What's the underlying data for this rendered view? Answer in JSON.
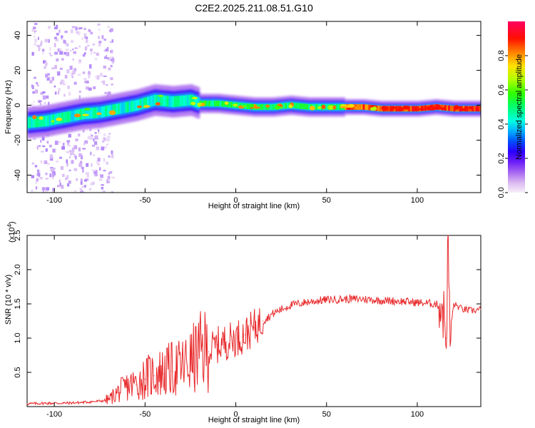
{
  "figure": {
    "title": "C2E2.2025.211.08.51.G10"
  },
  "chart_data": [
    {
      "type": "heatmap",
      "name": "spectrogram",
      "xlabel": "Height of straight line (km)",
      "ylabel": "Frequency (Hz)",
      "xlim": [
        -115,
        135
      ],
      "ylim": [
        -50,
        48
      ],
      "x_ticks": [
        -100,
        -50,
        0,
        50,
        100
      ],
      "x_tick_labels": [
        "-100",
        "-50",
        "0",
        "50",
        "100"
      ],
      "y_ticks": [
        40,
        20,
        0,
        -20,
        -40
      ],
      "y_tick_labels": [
        "40",
        "20",
        "0",
        "-20",
        "-40"
      ],
      "colorbar": {
        "label": "Normalized spectral amplitude",
        "range": [
          0.0,
          1.0
        ],
        "ticks": [
          0.0,
          0.2,
          0.4,
          0.6,
          0.8
        ],
        "tick_labels": [
          "0.0",
          "0.2",
          "0.4",
          "0.6",
          "0.8"
        ],
        "colormap": [
          "#f5ecf8",
          "#c59bef",
          "#8c3cf3",
          "#5200ff",
          "#0000ff",
          "#0080ff",
          "#00ffff",
          "#00ff80",
          "#00ff00",
          "#80ff00",
          "#ffff00",
          "#ff8000",
          "#ff0000",
          "#ff0080"
        ]
      },
      "ridge_frequency": {
        "x": [
          -115,
          -105,
          -95,
          -85,
          -75,
          -65,
          -55,
          -45,
          -35,
          -25,
          -20,
          -10,
          0,
          10,
          20,
          30,
          40,
          50,
          60,
          70,
          80,
          90,
          100,
          110,
          120,
          135
        ],
        "freq": [
          -10,
          -9,
          -7,
          -5,
          -4,
          -2,
          0,
          3,
          2,
          3,
          1,
          1,
          0,
          -1,
          -1,
          0,
          -1,
          -1,
          -1,
          -1,
          -2,
          -2,
          -2,
          -1,
          -2,
          -2
        ]
      }
    },
    {
      "type": "line",
      "name": "snr",
      "xlabel": "Height of straight line (km)",
      "ylabel": "SNR (10 * v/v)",
      "y_multiplier": "(x10",
      "y_multiplier_exp": "4",
      "y_multiplier_close": ")",
      "xlim": [
        -115,
        135
      ],
      "ylim": [
        0,
        2.5
      ],
      "x_ticks": [
        -100,
        -50,
        0,
        50,
        100
      ],
      "x_tick_labels": [
        "-100",
        "-50",
        "0",
        "50",
        "100"
      ],
      "y_ticks": [
        2.5,
        2.0,
        1.5,
        1.0,
        0.5
      ],
      "y_tick_labels": [
        "2.5",
        "2.0",
        "1.5",
        "1.0",
        "0.5"
      ],
      "color": "#e8282a",
      "x": [
        -115,
        -105,
        -95,
        -85,
        -75,
        -70,
        -65,
        -60,
        -55,
        -50,
        -45,
        -40,
        -35,
        -30,
        -25,
        -20,
        -15,
        -10,
        -5,
        0,
        5,
        10,
        15,
        20,
        25,
        30,
        40,
        50,
        60,
        70,
        80,
        90,
        100,
        110,
        114,
        116,
        117,
        118,
        120,
        125,
        130,
        135
      ],
      "y": [
        0.04,
        0.05,
        0.05,
        0.06,
        0.08,
        0.1,
        0.2,
        0.28,
        0.32,
        0.4,
        0.45,
        0.48,
        0.52,
        0.55,
        0.62,
        0.75,
        0.8,
        0.9,
        0.95,
        1.0,
        1.05,
        1.15,
        1.25,
        1.35,
        1.42,
        1.48,
        1.53,
        1.56,
        1.57,
        1.57,
        1.55,
        1.54,
        1.52,
        1.5,
        1.45,
        1.0,
        2.5,
        0.95,
        1.5,
        1.42,
        1.4,
        1.42
      ]
    }
  ]
}
